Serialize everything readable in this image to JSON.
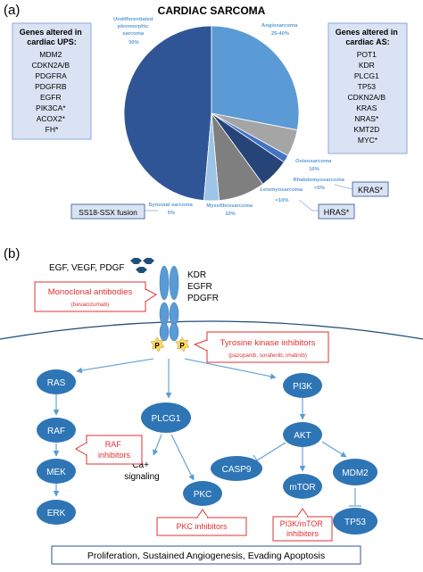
{
  "panel_a": {
    "label": "(a)",
    "title": "CARDIAC SARCOMA",
    "ups_box": {
      "heading": [
        "Genes altered in",
        "cardiac UPS:"
      ],
      "genes": [
        "MDM2",
        "CDKN2A/B",
        "PDGFRA",
        "PDGFRB",
        "EGFR",
        "PIK3CA*",
        "ACOX2*",
        "FH*"
      ]
    },
    "as_box": {
      "heading": [
        "Genes altered in",
        "cardiac AS:"
      ],
      "genes": [
        "POT1",
        "KDR",
        "PLCG1",
        "TP53",
        "CDKN2A/B",
        "KRAS",
        "NRAS*",
        "KMT2D",
        "MYC*"
      ]
    },
    "labels": {
      "ups": [
        "Undifferentiated",
        "pleomorphic",
        "sarcoma",
        "50%"
      ],
      "angio": [
        "Angiosarcoma",
        "25-40%"
      ],
      "osteo": [
        "Osteosarcoma",
        "10%"
      ],
      "rhabdo": [
        "Rhabdomyosarcoma",
        "<5%"
      ],
      "leio": [
        "Leiomyosarcoma",
        "<10%"
      ],
      "myxo": [
        "Myxofibrosarcoma",
        "10%"
      ],
      "synovial": [
        "Synovial sarcoma",
        "5%"
      ]
    },
    "tags": {
      "kras": "KRAS*",
      "hras": "HRAS*",
      "ss18": "SS18-SSX fusion"
    },
    "colors": {
      "ups": "#2f5597",
      "angio": "#5b9bd5",
      "osteo": "#a5a5a5",
      "rhabdo": "#4472c4",
      "leio": "#264478",
      "myxo": "#7f7f7f",
      "synovial": "#9dc3e6",
      "label": "#5b9bd5"
    }
  },
  "panel_b": {
    "label": "(b)",
    "ligands": "EGF, VEGF, PDGF",
    "receptors": [
      "KDR",
      "EGFR",
      "PDGFR"
    ],
    "phospho": "P",
    "drugs": {
      "mab": {
        "title": "Monoclonal antibodies",
        "sub": "(bevacizumab)"
      },
      "tki": {
        "title": "Tyrosine kinase inhibitors",
        "sub": "(pazopanib, sorafenib, imatinib)"
      },
      "raf": [
        "RAF",
        "inhibitors"
      ],
      "pkc": "PKC inhibitors",
      "mtor": [
        "PI3K/mTOR",
        "inhibitors"
      ]
    },
    "nodes": {
      "ras": "RAS",
      "raf": "RAF",
      "mek": "MEK",
      "erk": "ERK",
      "plcg1": "PLCG1",
      "pkc": "PKC",
      "pi3k": "PI3K",
      "akt": "AKT",
      "casp9": "CASP9",
      "mtor": "mTOR",
      "mdm2": "MDM2",
      "tp53": "TP53"
    },
    "ca_signaling": [
      "Ca+",
      "signaling"
    ],
    "outcome": "Proliferation, Sustained Angiogenesis, Evading Apoptosis",
    "colors": {
      "node": "#2e75b6",
      "red": "#e03030",
      "arrow": "#5b9bd5",
      "hex": "#1f4e79",
      "yellow": "#ffd966"
    }
  }
}
